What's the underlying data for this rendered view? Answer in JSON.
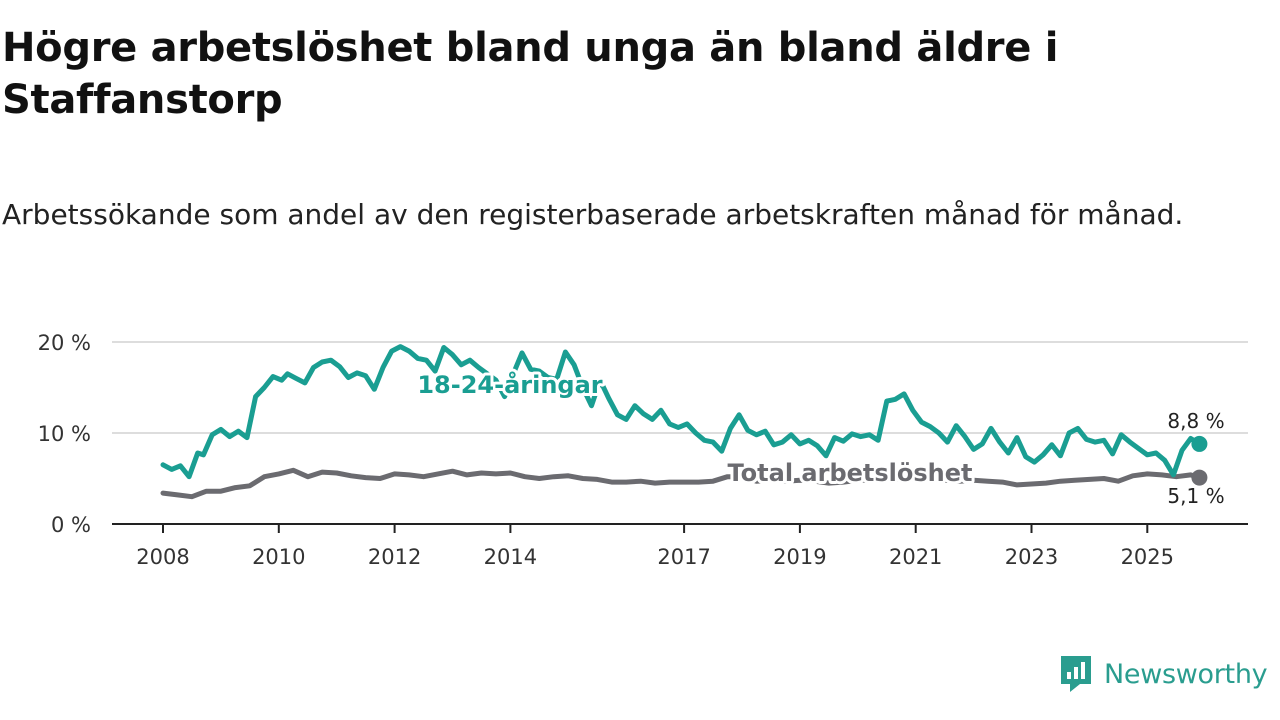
{
  "title": "Högre arbetslöshet bland unga än bland äldre i Staffanstorp",
  "subtitle": "Arbetssökande som andel av den registerbaserade arbetskraften månad för månad.",
  "brand": {
    "name": "Newsworthy"
  },
  "colors": {
    "youth": "#1a9e92",
    "total": "#6b6b70",
    "axis": "#222222",
    "grid": "#dddddd"
  },
  "chart_data": {
    "type": "line",
    "title": "Högre arbetslöshet bland unga än bland äldre i Staffanstorp",
    "xlabel": "",
    "ylabel": "",
    "ylim": [
      0,
      20
    ],
    "y_ticks": [
      {
        "value": 0,
        "label": "0 %"
      },
      {
        "value": 10,
        "label": "10 %"
      },
      {
        "value": 20,
        "label": "20 %"
      }
    ],
    "x_ticks": [
      {
        "value": 2008,
        "label": "2008"
      },
      {
        "value": 2010,
        "label": "2010"
      },
      {
        "value": 2012,
        "label": "2012"
      },
      {
        "value": 2014,
        "label": "2014"
      },
      {
        "value": 2017,
        "label": "2017"
      },
      {
        "value": 2019,
        "label": "2019"
      },
      {
        "value": 2021,
        "label": "2021"
      },
      {
        "value": 2023,
        "label": "2023"
      },
      {
        "value": 2025,
        "label": "2025"
      }
    ],
    "xlim": [
      2008,
      2026.1
    ],
    "grid": true,
    "series": [
      {
        "name": "18-24-åringar",
        "color": "#1a9e92",
        "end_label": "8,8 %",
        "x": [
          2008.0,
          2008.15,
          2008.3,
          2008.45,
          2008.6,
          2008.7,
          2008.85,
          2009.0,
          2009.15,
          2009.3,
          2009.45,
          2009.6,
          2009.75,
          2009.9,
          2010.05,
          2010.15,
          2010.3,
          2010.45,
          2010.6,
          2010.75,
          2010.9,
          2011.05,
          2011.2,
          2011.35,
          2011.5,
          2011.65,
          2011.8,
          2011.95,
          2012.1,
          2012.25,
          2012.4,
          2012.55,
          2012.7,
          2012.85,
          2013.0,
          2013.15,
          2013.3,
          2013.45,
          2013.6,
          2013.75,
          2013.9,
          2014.05,
          2014.2,
          2014.35,
          2014.5,
          2014.65,
          2014.8,
          2014.95,
          2015.1,
          2015.25,
          2015.4,
          2015.55,
          2015.7,
          2015.85,
          2016.0,
          2016.15,
          2016.3,
          2016.45,
          2016.6,
          2016.75,
          2016.9,
          2017.05,
          2017.2,
          2017.35,
          2017.5,
          2017.65,
          2017.8,
          2017.95,
          2018.1,
          2018.25,
          2018.4,
          2018.55,
          2018.7,
          2018.85,
          2019.0,
          2019.15,
          2019.3,
          2019.45,
          2019.6,
          2019.75,
          2019.9,
          2020.05,
          2020.2,
          2020.35,
          2020.5,
          2020.65,
          2020.8,
          2020.95,
          2021.1,
          2021.25,
          2021.4,
          2021.55,
          2021.7,
          2021.85,
          2022.0,
          2022.15,
          2022.3,
          2022.45,
          2022.6,
          2022.75,
          2022.9,
          2023.05,
          2023.2,
          2023.35,
          2023.5,
          2023.65,
          2023.8,
          2023.95,
          2024.1,
          2024.25,
          2024.4,
          2024.55,
          2024.7,
          2024.85,
          2025.0,
          2025.15,
          2025.3,
          2025.45,
          2025.6,
          2025.75,
          2025.9
        ],
        "y": [
          6.5,
          6.0,
          6.4,
          5.2,
          7.8,
          7.6,
          9.8,
          10.4,
          9.6,
          10.2,
          9.5,
          14.0,
          15.0,
          16.2,
          15.8,
          16.5,
          16.0,
          15.5,
          17.2,
          17.8,
          18.0,
          17.3,
          16.1,
          16.6,
          16.3,
          14.8,
          17.2,
          19.0,
          19.5,
          19.0,
          18.2,
          18.0,
          16.8,
          19.4,
          18.6,
          17.5,
          18.0,
          17.2,
          16.5,
          15.8,
          14.0,
          16.5,
          18.8,
          17.0,
          16.8,
          16.1,
          15.9,
          18.9,
          17.5,
          15.0,
          13.0,
          15.8,
          13.8,
          12.0,
          11.5,
          13.0,
          12.1,
          11.5,
          12.5,
          11.0,
          10.6,
          11.0,
          10.0,
          9.2,
          9.0,
          8.0,
          10.5,
          12.0,
          10.3,
          9.8,
          10.2,
          8.7,
          9.0,
          9.8,
          8.8,
          9.2,
          8.6,
          7.5,
          9.5,
          9.1,
          9.9,
          9.6,
          9.8,
          9.2,
          13.5,
          13.7,
          14.3,
          12.5,
          11.2,
          10.7,
          10.0,
          9.0,
          10.8,
          9.6,
          8.2,
          8.8,
          10.5,
          9.0,
          7.8,
          9.5,
          7.4,
          6.8,
          7.6,
          8.7,
          7.5,
          10.0,
          10.5,
          9.3,
          9.0,
          9.2,
          7.7,
          9.8,
          9.0,
          8.3,
          7.6,
          7.8,
          7.0,
          5.4,
          8.1,
          9.4,
          8.8
        ]
      },
      {
        "name": "Total arbetslöshet",
        "color": "#6b6b70",
        "end_label": "5,1 %",
        "x": [
          2008.0,
          2008.25,
          2008.5,
          2008.75,
          2009.0,
          2009.25,
          2009.5,
          2009.75,
          2010.0,
          2010.25,
          2010.5,
          2010.75,
          2011.0,
          2011.25,
          2011.5,
          2011.75,
          2012.0,
          2012.25,
          2012.5,
          2012.75,
          2013.0,
          2013.25,
          2013.5,
          2013.75,
          2014.0,
          2014.25,
          2014.5,
          2014.75,
          2015.0,
          2015.25,
          2015.5,
          2015.75,
          2016.0,
          2016.25,
          2016.5,
          2016.75,
          2017.0,
          2017.25,
          2017.5,
          2017.75,
          2018.0,
          2018.25,
          2018.5,
          2018.75,
          2019.0,
          2019.25,
          2019.5,
          2019.75,
          2020.0,
          2020.25,
          2020.5,
          2020.75,
          2021.0,
          2021.25,
          2021.5,
          2021.75,
          2022.0,
          2022.25,
          2022.5,
          2022.75,
          2023.0,
          2023.25,
          2023.5,
          2023.75,
          2024.0,
          2024.25,
          2024.5,
          2024.75,
          2025.0,
          2025.25,
          2025.5,
          2025.75,
          2025.9
        ],
        "y": [
          3.4,
          3.2,
          3.0,
          3.6,
          3.6,
          4.0,
          4.2,
          5.2,
          5.5,
          5.9,
          5.2,
          5.7,
          5.6,
          5.3,
          5.1,
          5.0,
          5.5,
          5.4,
          5.2,
          5.5,
          5.8,
          5.4,
          5.6,
          5.5,
          5.6,
          5.2,
          5.0,
          5.2,
          5.3,
          5.0,
          4.9,
          4.6,
          4.6,
          4.7,
          4.5,
          4.6,
          4.6,
          4.6,
          4.7,
          5.2,
          5.2,
          4.7,
          4.8,
          4.7,
          4.8,
          4.7,
          4.5,
          4.6,
          4.8,
          4.8,
          5.0,
          4.9,
          4.9,
          4.9,
          4.8,
          4.7,
          4.8,
          4.7,
          4.6,
          4.3,
          4.4,
          4.5,
          4.7,
          4.8,
          4.9,
          5.0,
          4.7,
          5.3,
          5.5,
          5.4,
          5.2,
          5.4,
          5.1
        ]
      }
    ]
  }
}
